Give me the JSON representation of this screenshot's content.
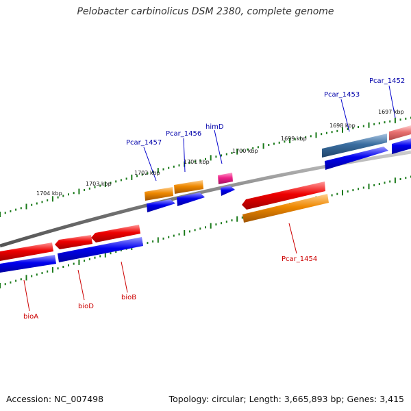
{
  "title": "Pelobacter carbinolicus DSM 2380, complete genome",
  "footer": {
    "accession": "Accession: NC_007498",
    "summary": "Topology: circular; Length: 3,665,893 bp; Genes: 3,415"
  },
  "scale_labels": [
    "1697 kbp",
    "1698 kbp",
    "1699 kbp",
    "1700 kbp",
    "1701 kbp",
    "1702 kbp",
    "1703 kbp",
    "1704 kbp"
  ],
  "gene_labels": {
    "top": [
      "Pcar_1452",
      "Pcar_1453",
      "himD",
      "Pcar_1456",
      "Pcar_1457"
    ],
    "bottom": [
      "Pcar_1454",
      "bioB",
      "bioD",
      "bioA"
    ]
  },
  "colors": {
    "backbone": "#888888",
    "tick": "#1a7a1a",
    "top_label": "#0000aa",
    "bottom_label": "#cc0000",
    "cds_forward": "#0000ee",
    "cds_reverse": "#ee0000",
    "gene_orange": "#ee8800",
    "gene_magenta": "#ee2288",
    "gene_steel": "#3a6ea0",
    "gene_pink": "#e87070"
  }
}
